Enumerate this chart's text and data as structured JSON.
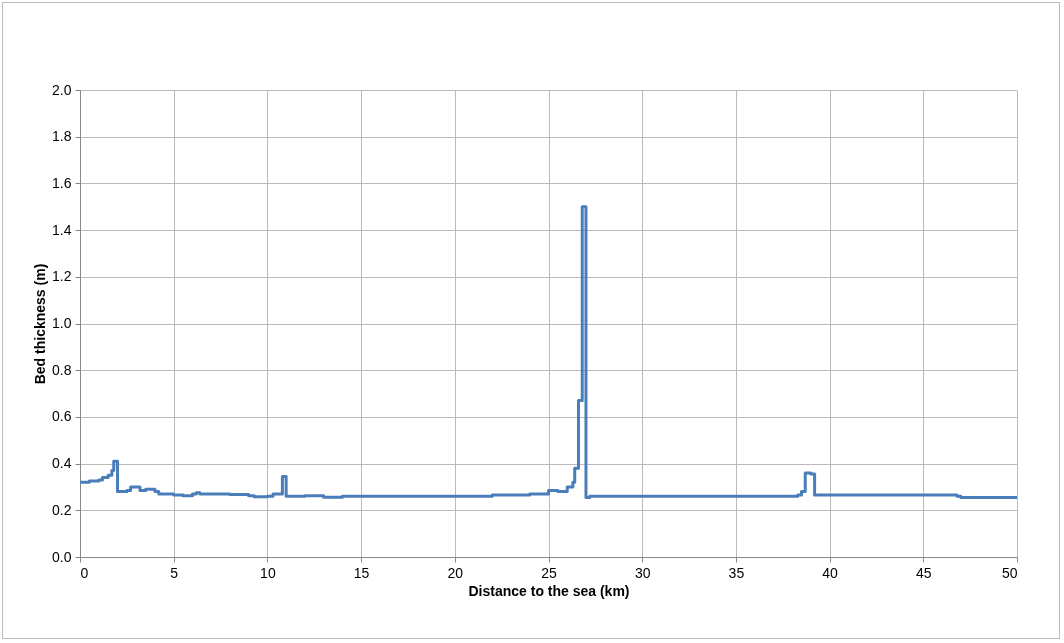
{
  "chart_data": {
    "type": "step",
    "xlabel": "Distance to the sea (km)",
    "ylabel": "Bed thickness (m)",
    "x": [
      0,
      0.5,
      1.0,
      1.2,
      1.5,
      1.7,
      1.8,
      2.0,
      2.5,
      2.7,
      3.2,
      3.5,
      4.0,
      4.2,
      5.0,
      5.5,
      6.0,
      6.2,
      6.4,
      8.0,
      9.0,
      9.3,
      10.0,
      10.3,
      10.8,
      11.0,
      12.0,
      13.0,
      14.0,
      22.0,
      24.0,
      25.0,
      25.5,
      26.0,
      26.3,
      26.4,
      26.6,
      26.8,
      27.0,
      27.2,
      38.3,
      38.5,
      38.7,
      39.0,
      39.2,
      46.8,
      47.0,
      50
    ],
    "series": [
      {
        "color": "#4a7ebb",
        "values": [
          0.32,
          0.325,
          0.33,
          0.34,
          0.35,
          0.37,
          0.41,
          0.28,
          0.285,
          0.3,
          0.285,
          0.29,
          0.28,
          0.27,
          0.265,
          0.262,
          0.27,
          0.275,
          0.27,
          0.268,
          0.262,
          0.258,
          0.26,
          0.27,
          0.345,
          0.26,
          0.262,
          0.256,
          0.26,
          0.265,
          0.27,
          0.285,
          0.28,
          0.3,
          0.32,
          0.38,
          0.67,
          1.5,
          0.255,
          0.26,
          0.265,
          0.28,
          0.36,
          0.355,
          0.265,
          0.26,
          0.255,
          0.255
        ]
      }
    ],
    "xlim": [
      0,
      50
    ],
    "xticks": [
      0,
      5,
      10,
      15,
      20,
      25,
      30,
      35,
      40,
      45,
      50
    ],
    "ylim": [
      0,
      2
    ],
    "yticks": [
      {
        "value": 0,
        "label": "0.0"
      },
      {
        "value": 0.2,
        "label": "0.2"
      },
      {
        "value": 0.4,
        "label": "0.4"
      },
      {
        "value": 0.6,
        "label": "0.6"
      },
      {
        "value": 0.8,
        "label": "0.8"
      },
      {
        "value": 1.0,
        "label": "1.0"
      },
      {
        "value": 1.2,
        "label": "1.2"
      },
      {
        "value": 1.4,
        "label": "1.4"
      },
      {
        "value": 1.6,
        "label": "1.6"
      },
      {
        "value": 1.8,
        "label": "1.8"
      },
      {
        "value": 2.0,
        "label": "2.0"
      }
    ],
    "grid": true,
    "line_style": "solid",
    "marker": "none"
  }
}
